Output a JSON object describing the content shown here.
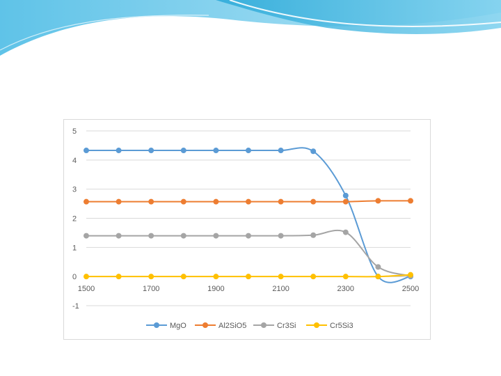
{
  "chart_data": {
    "type": "line",
    "title": "",
    "xlabel": "",
    "ylabel": "",
    "x": [
      1500,
      1600,
      1700,
      1800,
      1900,
      2000,
      2100,
      2200,
      2300,
      2400,
      2500
    ],
    "xticks": [
      1500,
      1700,
      1900,
      2100,
      2300,
      2500
    ],
    "xlim": [
      1500,
      2500
    ],
    "ylim": [
      -1,
      5
    ],
    "yticks": [
      -1,
      0,
      1,
      2,
      3,
      4,
      5
    ],
    "grid": "horizontal",
    "legend": "bottom",
    "smooth": true,
    "series": [
      {
        "name": "MgO",
        "color": "#5b9bd5",
        "values": [
          4.33,
          4.33,
          4.33,
          4.33,
          4.33,
          4.33,
          4.33,
          4.3,
          2.78,
          0.0,
          0.0
        ]
      },
      {
        "name": "Al2SiO5",
        "color": "#ed7d31",
        "values": [
          2.57,
          2.57,
          2.57,
          2.57,
          2.57,
          2.57,
          2.57,
          2.57,
          2.57,
          2.6,
          2.6
        ]
      },
      {
        "name": "Cr3Si",
        "color": "#a5a5a5",
        "values": [
          1.4,
          1.4,
          1.4,
          1.4,
          1.4,
          1.4,
          1.4,
          1.42,
          1.52,
          0.33,
          0.02
        ]
      },
      {
        "name": "Cr5Si3",
        "color": "#ffc000",
        "values": [
          0.0,
          0.0,
          0.0,
          0.0,
          0.0,
          0.0,
          0.0,
          0.0,
          0.0,
          0.0,
          0.06
        ]
      }
    ]
  }
}
